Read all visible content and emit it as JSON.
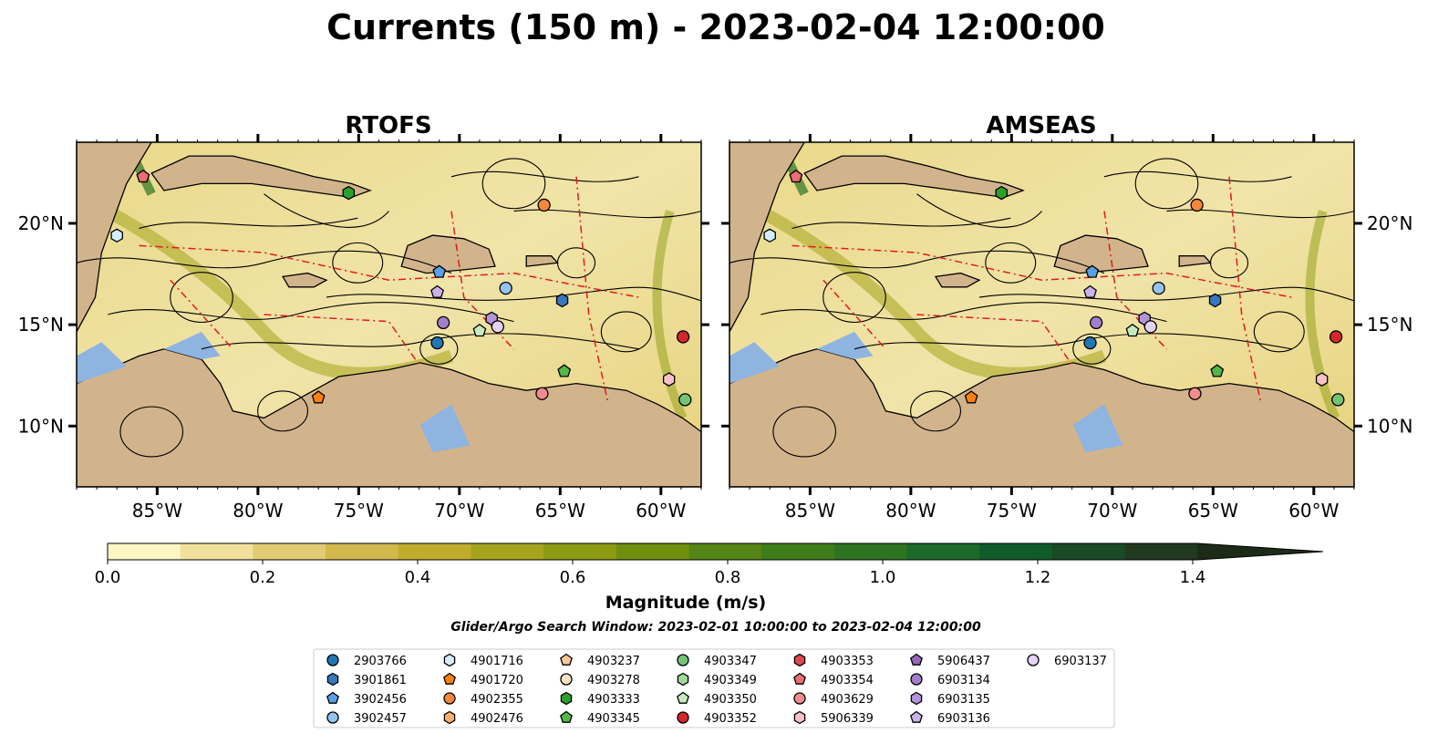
{
  "figure": {
    "title": "Currents (150 m) - 2023-02-04 12:00:00",
    "search_window": "Glider/Argo Search Window: 2023-02-01 10:00:00 to 2023-02-04 12:00:00"
  },
  "chart_data": {
    "type": "map",
    "panels": [
      {
        "title": "RTOFS",
        "lon_range": [
          -89,
          -58
        ],
        "lat_range": [
          7,
          24
        ],
        "x_ticks": [
          -85,
          -80,
          -75,
          -70,
          -65,
          -60
        ],
        "x_tick_labels": [
          "85°W",
          "80°W",
          "75°W",
          "70°W",
          "65°W",
          "60°W"
        ],
        "y_ticks": [
          10,
          15,
          20
        ],
        "y_tick_labels": [
          "10°N",
          "15°N",
          "20°N"
        ],
        "y_labels_side": "left"
      },
      {
        "title": "AMSEAS",
        "lon_range": [
          -89,
          -58
        ],
        "lat_range": [
          7,
          24
        ],
        "x_ticks": [
          -85,
          -80,
          -75,
          -70,
          -65,
          -60
        ],
        "x_tick_labels": [
          "85°W",
          "80°W",
          "75°W",
          "70°W",
          "65°W",
          "60°W"
        ],
        "y_ticks": [
          10,
          15,
          20
        ],
        "y_tick_labels": [
          "10°N",
          "15°N",
          "20°N"
        ],
        "y_labels_side": "right"
      }
    ],
    "colorbar": {
      "label": "Magnitude (m/s)",
      "min": 0.0,
      "max": 1.5,
      "step": 0.1,
      "extend": "max",
      "ticks": [
        0.0,
        0.2,
        0.4,
        0.6,
        0.8,
        1.0,
        1.2,
        1.4
      ],
      "tick_labels": [
        "0.0",
        "0.2",
        "0.4",
        "0.6",
        "0.8",
        "1.0",
        "1.2",
        "1.4"
      ],
      "colors": [
        "#fdf6c3",
        "#f1e19c",
        "#e1cb74",
        "#d3b84e",
        "#bfae2e",
        "#a6a41c",
        "#8c9b12",
        "#6f900f",
        "#548515",
        "#3f7d1b",
        "#2e7320",
        "#1b6a29",
        "#0f5c2a",
        "#1a4a26",
        "#20391f",
        "#1c2a18"
      ]
    },
    "map_colors": {
      "ocean": "#8fb4e0",
      "land": "#d2b48c",
      "eez": "#e41a1c",
      "streamline": "#000000"
    },
    "floats": [
      {
        "id": "2903766",
        "marker": "circle",
        "color": "#1f77b4",
        "rtofs": [
          -71.1,
          14.1
        ],
        "amseas": [
          -71.1,
          14.1
        ]
      },
      {
        "id": "3901861",
        "marker": "hexagon",
        "color": "#3778bf",
        "rtofs": [
          -64.9,
          16.2
        ],
        "amseas": [
          -64.9,
          16.2
        ]
      },
      {
        "id": "3902456",
        "marker": "pentagon",
        "color": "#5aa0e6",
        "rtofs": [
          -71.0,
          17.6
        ],
        "amseas": [
          -71.0,
          17.6
        ]
      },
      {
        "id": "3902457",
        "marker": "circle",
        "color": "#94c4f2",
        "rtofs": [
          -67.7,
          16.8
        ],
        "amseas": [
          -67.7,
          16.8
        ]
      },
      {
        "id": "4901716",
        "marker": "hexagon",
        "color": "#d2eefc",
        "rtofs": [
          -87.0,
          19.4
        ],
        "amseas": [
          -87.0,
          19.4
        ]
      },
      {
        "id": "4901720",
        "marker": "pentagon",
        "color": "#ff7f0e",
        "rtofs": [
          -77.0,
          11.4
        ],
        "amseas": [
          -77.0,
          11.4
        ]
      },
      {
        "id": "4902355",
        "marker": "circle",
        "color": "#f5873a",
        "rtofs": [
          -65.8,
          20.9
        ],
        "amseas": [
          -65.8,
          20.9
        ]
      },
      {
        "id": "4902476",
        "marker": "hexagon",
        "color": "#fdae6b",
        "rtofs": [
          -9999,
          -9999
        ],
        "amseas": [
          -9999,
          -9999
        ]
      },
      {
        "id": "4903237",
        "marker": "pentagon",
        "color": "#fdc895",
        "rtofs": [
          -9999,
          -9999
        ],
        "amseas": [
          -9999,
          -9999
        ]
      },
      {
        "id": "4903278",
        "marker": "circle",
        "color": "#fee0c2",
        "rtofs": [
          -9999,
          -9999
        ],
        "amseas": [
          -9999,
          -9999
        ]
      },
      {
        "id": "4903333",
        "marker": "hexagon",
        "color": "#2ca02c",
        "rtofs": [
          -75.5,
          21.5
        ],
        "amseas": [
          -75.5,
          21.5
        ]
      },
      {
        "id": "4903345",
        "marker": "pentagon",
        "color": "#54b848",
        "rtofs": [
          -64.8,
          12.7
        ],
        "amseas": [
          -64.8,
          12.7
        ]
      },
      {
        "id": "4903347",
        "marker": "circle",
        "color": "#74c476",
        "rtofs": [
          -58.8,
          11.3
        ],
        "amseas": [
          -58.8,
          11.3
        ]
      },
      {
        "id": "4903349",
        "marker": "hexagon",
        "color": "#a1d99b",
        "rtofs": [
          -9999,
          -9999
        ],
        "amseas": [
          -9999,
          -9999
        ]
      },
      {
        "id": "4903350",
        "marker": "pentagon",
        "color": "#c7e9c0",
        "rtofs": [
          -69.0,
          14.7
        ],
        "amseas": [
          -69.0,
          14.7
        ]
      },
      {
        "id": "4903352",
        "marker": "circle",
        "color": "#d62728",
        "rtofs": [
          -58.9,
          14.4
        ],
        "amseas": [
          -58.9,
          14.4
        ]
      },
      {
        "id": "4903353",
        "marker": "hexagon",
        "color": "#e0474c",
        "rtofs": [
          -9999,
          -9999
        ],
        "amseas": [
          -9999,
          -9999
        ]
      },
      {
        "id": "4903354",
        "marker": "pentagon",
        "color": "#ea6e73",
        "rtofs": [
          -85.7,
          22.3
        ],
        "amseas": [
          -85.7,
          22.3
        ]
      },
      {
        "id": "4903629",
        "marker": "circle",
        "color": "#f08c8c",
        "rtofs": [
          -65.9,
          11.6
        ],
        "amseas": [
          -65.9,
          11.6
        ]
      },
      {
        "id": "5906339",
        "marker": "hexagon",
        "color": "#f8c1c6",
        "rtofs": [
          -59.6,
          12.3
        ],
        "amseas": [
          -59.6,
          12.3
        ]
      },
      {
        "id": "5906437",
        "marker": "pentagon",
        "color": "#9467bd",
        "rtofs": [
          -9999,
          -9999
        ],
        "amseas": [
          -9999,
          -9999
        ]
      },
      {
        "id": "6903134",
        "marker": "circle",
        "color": "#a27fcb",
        "rtofs": [
          -70.8,
          15.1
        ],
        "amseas": [
          -70.8,
          15.1
        ]
      },
      {
        "id": "6903135",
        "marker": "hexagon",
        "color": "#b494d8",
        "rtofs": [
          -68.4,
          15.3
        ],
        "amseas": [
          -68.4,
          15.3
        ]
      },
      {
        "id": "6903136",
        "marker": "pentagon",
        "color": "#cbb2ea",
        "rtofs": [
          -71.1,
          16.6
        ],
        "amseas": [
          -71.1,
          16.6
        ]
      },
      {
        "id": "6903137",
        "marker": "circle",
        "color": "#e5d2f5",
        "rtofs": [
          -68.1,
          14.9
        ],
        "amseas": [
          -68.1,
          14.9
        ]
      }
    ]
  }
}
